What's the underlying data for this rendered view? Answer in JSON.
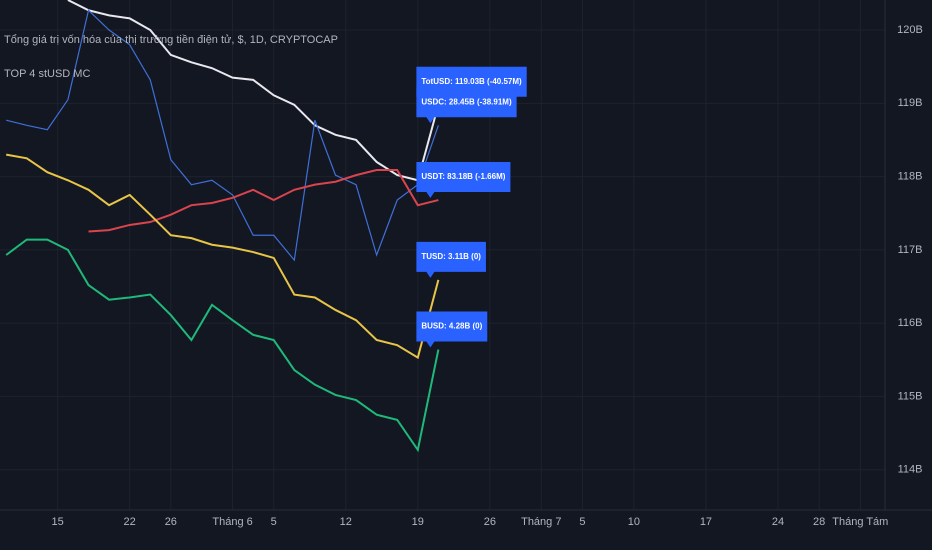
{
  "chart_data": {
    "type": "line",
    "title": "Tổng giá trị vốn hóa của thị trường tiền điện tử, $, 1D, CRYPTOCAP",
    "subtitle": "TOP 4 stUSD MC",
    "x": [
      -5,
      -3,
      -1,
      1,
      3,
      5,
      7,
      9,
      11,
      13,
      15,
      17,
      19,
      21,
      23,
      25,
      27,
      29,
      31,
      33,
      35,
      37
    ],
    "xlim": [
      -5.6,
      80.4
    ],
    "xticks": [
      {
        "value": 0,
        "label": "15"
      },
      {
        "value": 7,
        "label": "22"
      },
      {
        "value": 11,
        "label": "26"
      },
      {
        "value": 17,
        "label": "Tháng 6"
      },
      {
        "value": 21,
        "label": "5"
      },
      {
        "value": 28,
        "label": "12"
      },
      {
        "value": 35,
        "label": "19"
      },
      {
        "value": 42,
        "label": "26"
      },
      {
        "value": 47,
        "label": "Tháng 7"
      },
      {
        "value": 51,
        "label": "5"
      },
      {
        "value": 56,
        "label": "10"
      },
      {
        "value": 63,
        "label": "17"
      },
      {
        "value": 70,
        "label": "24"
      },
      {
        "value": 74,
        "label": "28"
      },
      {
        "value": 78,
        "label": "Tháng Tám"
      }
    ],
    "ylim": [
      113.45,
      120.41
    ],
    "yticks": [
      {
        "value": 120,
        "label": "120B"
      },
      {
        "value": 119,
        "label": "119B"
      },
      {
        "value": 118,
        "label": "118B"
      },
      {
        "value": 117,
        "label": "117B"
      },
      {
        "value": 116,
        "label": "116B"
      },
      {
        "value": 115,
        "label": "115B"
      },
      {
        "value": 114,
        "label": "114B"
      }
    ],
    "grid": true,
    "series": [
      {
        "name": "TotUSD",
        "color": "#e8e8ee",
        "label": "TotUSD: 119.03B (-40.57M)",
        "values": [
          null,
          null,
          null,
          120.41,
          120.27,
          120.2,
          120.16,
          120.0,
          119.66,
          119.56,
          119.48,
          119.35,
          119.32,
          119.11,
          118.98,
          118.7,
          118.57,
          118.5,
          118.2,
          118.02,
          117.95,
          118.98
        ]
      },
      {
        "name": "USDC",
        "color": "#3f6fd8",
        "label": "USDC: 28.45B (-38.91M)",
        "values": [
          118.77,
          118.7,
          118.64,
          119.05,
          120.27,
          120.0,
          119.8,
          119.32,
          118.23,
          117.89,
          117.95,
          117.75,
          117.2,
          117.2,
          116.86,
          118.77,
          118.02,
          117.89,
          116.93,
          117.68,
          117.89,
          118.7
        ]
      },
      {
        "name": "USDT",
        "color": "#d9444e",
        "label": "USDT: 83.18B (-1.66M)",
        "values": [
          null,
          null,
          null,
          null,
          117.25,
          117.27,
          117.34,
          117.38,
          117.48,
          117.61,
          117.64,
          117.71,
          117.82,
          117.68,
          117.82,
          117.89,
          117.93,
          118.02,
          118.09,
          118.09,
          117.61,
          117.68
        ]
      },
      {
        "name": "TUSD",
        "color": "#e8c547",
        "label": "TUSD: 3.11B (0)",
        "values": [
          118.3,
          118.25,
          118.06,
          117.95,
          117.82,
          117.61,
          117.75,
          117.48,
          117.2,
          117.16,
          117.07,
          117.03,
          116.97,
          116.89,
          116.39,
          116.35,
          116.18,
          116.04,
          115.77,
          115.7,
          115.53,
          116.59
        ]
      },
      {
        "name": "BUSD",
        "color": "#1fb97a",
        "label": "BUSD: 4.28B (0)",
        "values": [
          116.93,
          117.14,
          117.14,
          117.0,
          116.52,
          116.32,
          116.35,
          116.39,
          116.11,
          115.77,
          116.25,
          116.04,
          115.84,
          115.77,
          115.36,
          115.16,
          115.02,
          114.95,
          114.75,
          114.68,
          114.27,
          115.64
        ]
      }
    ]
  }
}
